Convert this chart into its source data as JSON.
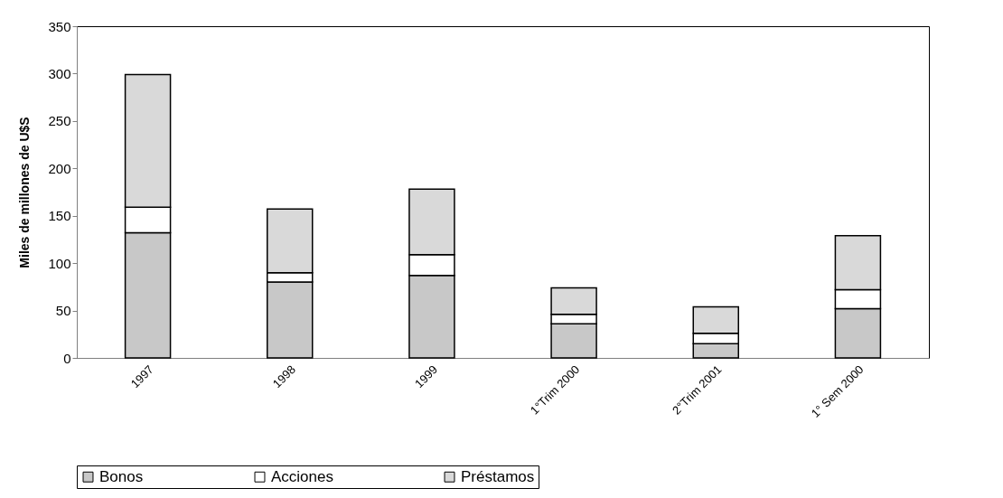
{
  "chart_data": {
    "type": "bar",
    "stacked": true,
    "ylabel": "Miles de millones de U$S",
    "categories": [
      "1997",
      "1998",
      "1999",
      "1°Trim 2000",
      "2°Trim 2001",
      "1° Sem 2000"
    ],
    "series": [
      {
        "name": "Bonos",
        "color": "#c8c8c8",
        "values": [
          132,
          80,
          87,
          36,
          15,
          52
        ]
      },
      {
        "name": "Acciones",
        "color": "#ffffff",
        "values": [
          27,
          10,
          22,
          10,
          11,
          20
        ]
      },
      {
        "name": "Préstamos",
        "color": "#d9d9d9",
        "values": [
          140,
          67,
          69,
          28,
          28,
          57
        ]
      }
    ],
    "ylim": [
      0,
      350
    ],
    "yticks": [
      0,
      50,
      100,
      150,
      200,
      250,
      300,
      350
    ],
    "grid": false,
    "legend": "bottom"
  }
}
